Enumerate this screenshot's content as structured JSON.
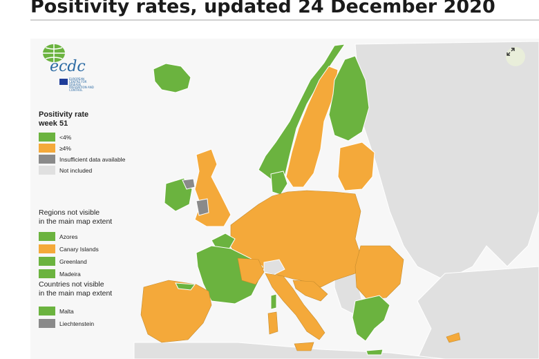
{
  "page": {
    "title": "Positivity rates, updated 24 December 2020"
  },
  "logo": {
    "text": "ecdc",
    "subtitle": "EUROPEAN CENTRE FOR DISEASE PREVENTION AND CONTROL"
  },
  "colors": {
    "below4": "#6bb33f",
    "above4": "#f4a93a",
    "insufficient": "#8a8a8a",
    "not_included": "#e0e0e0",
    "sea": "#f7f7f7",
    "border": "#c58b2c"
  },
  "legend": {
    "title_line1": "Positivity rate",
    "title_line2": "week 51",
    "items": [
      {
        "label": "<4%",
        "color": "#6bb33f"
      },
      {
        "label": "≥4%",
        "color": "#f4a93a"
      },
      {
        "label": "Insufficient data available",
        "color": "#8a8a8a"
      },
      {
        "label": "Not included",
        "color": "#e0e0e0"
      }
    ],
    "regions_heading_line1": "Regions not visible",
    "regions_heading_line2": "in the main map extent",
    "regions": [
      {
        "label": "Azores",
        "color": "#6bb33f"
      },
      {
        "label": "Canary Islands",
        "color": "#f4a93a"
      },
      {
        "label": "Greenland",
        "color": "#6bb33f"
      },
      {
        "label": "Madeira",
        "color": "#6bb33f"
      }
    ],
    "countries_heading_line1": "Countries not visible",
    "countries_heading_line2": "in the main map extent",
    "countries": [
      {
        "label": "Malta",
        "color": "#6bb33f"
      },
      {
        "label": "Liechtenstein",
        "color": "#8a8a8a"
      }
    ]
  },
  "controls": {
    "expand_icon": "expand-icon"
  }
}
